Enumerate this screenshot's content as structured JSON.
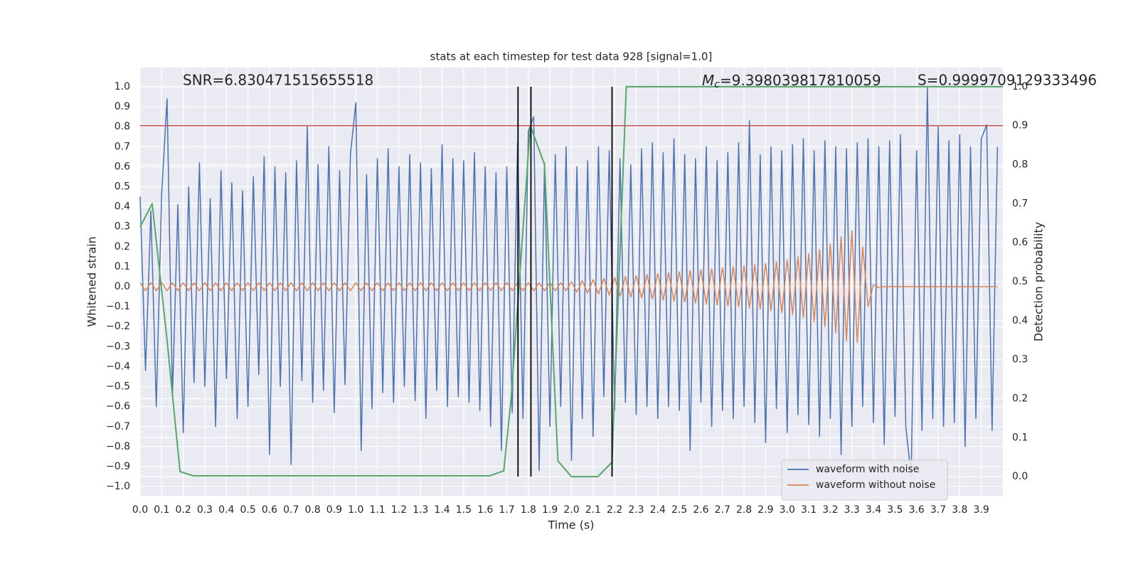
{
  "chart_data": {
    "type": "line",
    "title": "stats at each timestep for test data 928 [signal=1.0]",
    "xlabel": "Time (s)",
    "ylabel": "Whitened strain",
    "y2label": "Detection probability",
    "annotations": [
      {
        "text": "SNR=6.830471515655518"
      },
      {
        "symbol": "M",
        "subscript": "c",
        "text": "=9.398039817810059"
      },
      {
        "text": "S=0.9999709129333496"
      }
    ],
    "xlim": [
      0,
      4.0
    ],
    "ylim": [
      -1.046,
      1.096
    ],
    "y2lim": [
      -0.049,
      1.049
    ],
    "xticks": [
      {
        "value": 0,
        "label": "0.0"
      },
      0.1,
      0.2,
      0.3,
      0.4,
      0.5,
      0.6,
      0.7,
      0.8,
      0.9,
      {
        "value": 1,
        "label": "1.0"
      },
      1.1,
      1.2,
      1.3,
      1.4,
      1.5,
      1.6,
      1.7,
      1.8,
      1.9,
      {
        "value": 2,
        "label": "2.0"
      },
      2.1,
      2.2,
      2.3,
      2.4,
      2.5,
      2.6,
      2.7,
      2.8,
      2.9,
      {
        "value": 3,
        "label": "3.0"
      },
      3.1,
      3.2,
      3.3,
      3.4,
      3.5,
      3.6,
      3.7,
      3.8,
      3.9
    ],
    "yticks": [
      {
        "value": 1,
        "label": "1.0"
      },
      0.9,
      0.8,
      0.7,
      0.6,
      0.5,
      0.4,
      0.3,
      0.2,
      0.1,
      {
        "value": 0,
        "label": "0.0"
      },
      {
        "value": -0.1,
        "label": "−0.1"
      },
      {
        "value": -0.2,
        "label": "−0.2"
      },
      {
        "value": -0.3,
        "label": "−0.3"
      },
      {
        "value": -0.4,
        "label": "−0.4"
      },
      {
        "value": -0.5,
        "label": "−0.5"
      },
      {
        "value": -0.6,
        "label": "−0.6"
      },
      {
        "value": -0.7,
        "label": "−0.7"
      },
      {
        "value": -0.8,
        "label": "−0.8"
      },
      {
        "value": -0.9,
        "label": "−0.9"
      },
      {
        "value": -1,
        "label": "−1.0"
      }
    ],
    "y2ticks": [
      {
        "value": 0,
        "label": "0.0"
      },
      0.1,
      0.2,
      0.3,
      0.4,
      0.5,
      0.6,
      0.7,
      0.8,
      0.9,
      {
        "value": 1,
        "label": "1.0"
      }
    ],
    "grid": true,
    "legend": "lower right",
    "x": [
      0,
      0.025,
      0.05,
      0.075,
      0.1,
      0.125,
      0.15,
      0.175,
      0.2,
      0.225,
      0.25,
      0.275,
      0.3,
      0.325,
      0.35,
      0.375,
      0.4,
      0.425,
      0.45,
      0.475,
      0.5,
      0.525,
      0.55,
      0.575,
      0.6,
      0.625,
      0.65,
      0.675,
      0.7,
      0.725,
      0.75,
      0.775,
      0.8,
      0.825,
      0.85,
      0.875,
      0.9,
      0.925,
      0.95,
      0.975,
      1,
      1.025,
      1.05,
      1.075,
      1.1,
      1.125,
      1.15,
      1.175,
      1.2,
      1.225,
      1.25,
      1.275,
      1.3,
      1.325,
      1.35,
      1.375,
      1.4,
      1.425,
      1.45,
      1.475,
      1.5,
      1.525,
      1.55,
      1.575,
      1.6,
      1.625,
      1.65,
      1.675,
      1.7,
      1.725,
      1.75,
      1.775,
      1.8,
      1.825,
      1.85,
      1.875,
      1.9,
      1.925,
      1.95,
      1.975,
      2,
      2.025,
      2.05,
      2.075,
      2.1,
      2.125,
      2.15,
      2.175,
      2.2,
      2.225,
      2.25,
      2.275,
      2.3,
      2.325,
      2.35,
      2.375,
      2.4,
      2.425,
      2.45,
      2.475,
      2.5,
      2.525,
      2.55,
      2.575,
      2.6,
      2.625,
      2.65,
      2.675,
      2.7,
      2.725,
      2.75,
      2.775,
      2.8,
      2.825,
      2.85,
      2.875,
      2.9,
      2.925,
      2.95,
      2.975,
      3,
      3.025,
      3.05,
      3.075,
      3.1,
      3.125,
      3.15,
      3.175,
      3.2,
      3.225,
      3.25,
      3.275,
      3.3,
      3.325,
      3.35,
      3.375,
      3.4,
      3.425,
      3.45,
      3.475,
      3.5,
      3.525,
      3.55,
      3.575,
      3.6,
      3.625,
      3.65,
      3.675,
      3.7,
      3.725,
      3.75,
      3.775,
      3.8,
      3.825,
      3.85,
      3.875,
      3.9,
      3.925,
      3.95,
      3.975
    ],
    "series": [
      {
        "name": "waveform with noise",
        "color": "#4c72b0",
        "values": [
          0.45,
          -0.42,
          0.38,
          -0.6,
          0.47,
          0.94,
          -0.55,
          0.41,
          -0.73,
          0.5,
          -0.48,
          0.62,
          -0.5,
          0.44,
          -0.7,
          0.58,
          -0.46,
          0.52,
          -0.66,
          0.48,
          -0.6,
          0.55,
          -0.44,
          0.65,
          -0.84,
          0.6,
          -0.5,
          0.57,
          -0.89,
          0.63,
          -0.47,
          0.8,
          -0.58,
          0.61,
          -0.52,
          0.7,
          -0.63,
          0.58,
          -0.49,
          0.66,
          0.92,
          -0.82,
          0.56,
          -0.61,
          0.64,
          -0.53,
          0.69,
          -0.58,
          0.6,
          -0.5,
          0.66,
          -0.57,
          0.62,
          -0.66,
          0.59,
          -0.52,
          0.71,
          -0.6,
          0.64,
          -0.55,
          0.63,
          -0.58,
          0.67,
          -0.62,
          0.6,
          -0.7,
          0.57,
          -0.82,
          0.6,
          -0.63,
          0.72,
          -0.66,
          0.78,
          0.85,
          -0.92,
          0.62,
          -0.7,
          0.66,
          -0.6,
          0.7,
          -0.87,
          0.6,
          -0.66,
          0.63,
          -0.75,
          0.7,
          -0.55,
          0.68,
          -0.62,
          0.64,
          -0.58,
          0.61,
          -0.64,
          0.69,
          -0.6,
          0.72,
          -0.66,
          0.67,
          -0.6,
          0.74,
          -0.62,
          0.66,
          -0.82,
          0.64,
          -0.58,
          0.7,
          -0.7,
          0.63,
          -0.62,
          0.67,
          -0.66,
          0.72,
          -0.6,
          0.83,
          -0.68,
          0.66,
          -0.78,
          0.7,
          -0.61,
          0.68,
          -0.73,
          0.71,
          -0.64,
          0.74,
          -0.69,
          0.68,
          -0.75,
          0.73,
          -0.66,
          0.7,
          -0.84,
          0.69,
          -0.7,
          0.72,
          -0.6,
          0.74,
          -0.68,
          0.7,
          -0.79,
          0.73,
          -0.65,
          0.76,
          -0.7,
          -0.95,
          0.68,
          -0.72,
          1.0,
          -0.66,
          0.8,
          -0.7,
          0.73,
          -0.68,
          0.76,
          -0.8,
          0.7,
          -0.66,
          0.74,
          0.81,
          -0.72,
          0.7
        ]
      },
      {
        "name": "waveform without noise",
        "color": "#dd8452",
        "values": [
          0.02,
          -0.02,
          0.02,
          -0.02,
          0.02,
          -0.02,
          0.02,
          -0.02,
          0.02,
          -0.02,
          0.02,
          -0.02,
          0.02,
          -0.02,
          0.02,
          -0.02,
          0.02,
          -0.02,
          0.02,
          -0.02,
          0.02,
          -0.02,
          0.02,
          -0.02,
          0.02,
          -0.02,
          0.02,
          -0.02,
          0.02,
          -0.02,
          0.02,
          -0.02,
          0.02,
          -0.02,
          0.02,
          -0.02,
          0.02,
          -0.02,
          0.02,
          -0.02,
          0.02,
          -0.02,
          0.02,
          -0.02,
          0.02,
          -0.02,
          0.02,
          -0.02,
          0.02,
          -0.02,
          0.02,
          -0.02,
          0.02,
          -0.02,
          0.02,
          -0.02,
          0.02,
          -0.02,
          0.02,
          -0.02,
          0.02,
          -0.02,
          0.02,
          -0.02,
          0.02,
          -0.02,
          0.02,
          -0.02,
          0.02,
          -0.02,
          0.02,
          -0.02,
          0.02,
          -0.02,
          0.02,
          -0.02,
          0.02,
          -0.02,
          0.02,
          -0.02,
          0.025,
          -0.027,
          0.03,
          -0.032,
          0.035,
          -0.037,
          0.04,
          -0.042,
          0.045,
          -0.047,
          0.05,
          -0.052,
          0.055,
          -0.057,
          0.06,
          -0.062,
          0.065,
          -0.067,
          0.07,
          -0.072,
          0.075,
          -0.077,
          0.08,
          -0.082,
          0.085,
          -0.087,
          0.09,
          -0.092,
          0.095,
          -0.097,
          0.1,
          -0.102,
          0.105,
          -0.107,
          0.11,
          -0.112,
          0.115,
          -0.12,
          0.125,
          -0.13,
          0.135,
          -0.14,
          0.15,
          -0.155,
          0.165,
          -0.175,
          0.185,
          -0.2,
          0.215,
          -0.23,
          0.25,
          -0.27,
          0.28,
          -0.28,
          0.2,
          -0.1,
          0.01,
          -0.005,
          0,
          0,
          0,
          0,
          0,
          0,
          0,
          0,
          0,
          0,
          0,
          0,
          0,
          0,
          0,
          0,
          0,
          0,
          0,
          0,
          0,
          0
        ]
      },
      {
        "color": "#55a868",
        "axis": "y2",
        "x": [
          0,
          0.056,
          0.125,
          0.185,
          0.248,
          1.62,
          1.686,
          1.72,
          1.809,
          1.875,
          1.937,
          2.0,
          2.122,
          2.188,
          2.254,
          4.0
        ],
        "values": [
          0.64,
          0.7,
          0.35,
          0.013,
          0.002,
          0.002,
          0.015,
          0.2,
          0.9,
          0.8,
          0.04,
          0.0,
          0.0,
          0.037,
          1.0,
          1.0
        ]
      }
    ],
    "hlines": [
      {
        "value": 0.9,
        "axis": "y2",
        "color": "#c44e52"
      }
    ],
    "vlines": {
      "x": [
        1.752,
        1.812,
        2.188
      ],
      "y2range": [
        0.0,
        1.0
      ],
      "color": "#000000"
    }
  }
}
